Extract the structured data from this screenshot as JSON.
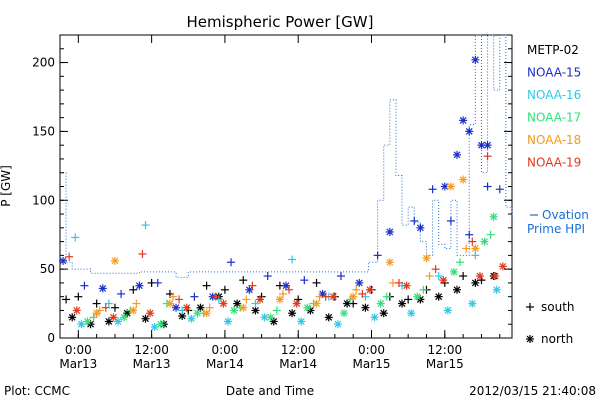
{
  "chart_data": {
    "type": "scatter",
    "title": "Hemispheric Power [GW]",
    "xlabel": "Date and Time",
    "ylabel": "P [GW]",
    "xlim": [
      "2012-03-12 21:00",
      "2012-03-15 23:00"
    ],
    "ylim": [
      0,
      220
    ],
    "yticks": [
      0,
      50,
      100,
      150,
      200
    ],
    "xticks": [
      {
        "t": "2012-03-13 00:00",
        "l1": "0:00",
        "l2": "Mar13"
      },
      {
        "t": "2012-03-13 12:00",
        "l1": "12:00",
        "l2": "Mar13"
      },
      {
        "t": "2012-03-14 00:00",
        "l1": "0:00",
        "l2": "Mar14"
      },
      {
        "t": "2012-03-14 12:00",
        "l1": "12:00",
        "l2": "Mar14"
      },
      {
        "t": "2012-03-15 00:00",
        "l1": "0:00",
        "l2": "Mar15"
      },
      {
        "t": "2012-03-15 12:00",
        "l1": "12:00",
        "l2": "Mar15"
      }
    ],
    "grid": false,
    "legend_position": "right",
    "satellites": [
      {
        "name": "METP-02",
        "color": "#000000"
      },
      {
        "name": "NOAA-15",
        "color": "#1a2fc8"
      },
      {
        "name": "NOAA-16",
        "color": "#2fc8e6"
      },
      {
        "name": "NOAA-17",
        "color": "#33e07a"
      },
      {
        "name": "NOAA-18",
        "color": "#f59a23"
      },
      {
        "name": "NOAA-19",
        "color": "#e03a1e"
      }
    ],
    "ovation": {
      "name": "Ovation Prime HPI",
      "label_line1": "Ovation",
      "label_line2": "Prime HPI",
      "color": "#1a6fd8",
      "x": [
        "2012-03-12 21:00",
        "2012-03-12 22:00",
        "2012-03-12 23:00",
        "2012-03-13 02:00",
        "2012-03-13 06:00",
        "2012-03-13 10:00",
        "2012-03-13 14:00",
        "2012-03-13 16:00",
        "2012-03-13 18:00",
        "2012-03-13 22:00",
        "2012-03-14 02:00",
        "2012-03-14 06:00",
        "2012-03-14 10:00",
        "2012-03-14 14:00",
        "2012-03-14 18:00",
        "2012-03-14 20:00",
        "2012-03-14 22:00",
        "2012-03-14 23:30",
        "2012-03-15 01:00",
        "2012-03-15 02:00",
        "2012-03-15 03:00",
        "2012-03-15 04:00",
        "2012-03-15 05:00",
        "2012-03-15 06:00",
        "2012-03-15 07:00",
        "2012-03-15 08:00",
        "2012-03-15 09:00",
        "2012-03-15 10:00",
        "2012-03-15 11:00",
        "2012-03-15 12:00",
        "2012-03-15 13:00",
        "2012-03-15 14:00",
        "2012-03-15 15:00",
        "2012-03-15 16:00",
        "2012-03-15 17:00",
        "2012-03-15 18:00",
        "2012-03-15 19:00",
        "2012-03-15 20:00",
        "2012-03-15 21:00",
        "2012-03-15 22:00",
        "2012-03-15 23:00"
      ],
      "values": [
        120,
        55,
        50,
        47,
        47,
        48,
        48,
        44,
        48,
        48,
        48,
        48,
        48,
        48,
        48,
        48,
        48,
        55,
        100,
        140,
        173,
        118,
        82,
        95,
        84,
        70,
        60,
        100,
        68,
        65,
        100,
        60,
        60,
        155,
        220,
        120,
        220,
        180,
        220,
        95,
        88
      ]
    },
    "series": [
      {
        "satellite": "METP-02",
        "hemisphere": "south",
        "x": [
          "2012-03-12 22:00",
          "2012-03-13 00:00",
          "2012-03-13 03:00",
          "2012-03-13 06:00",
          "2012-03-13 09:00",
          "2012-03-13 12:00",
          "2012-03-13 15:00",
          "2012-03-13 18:00",
          "2012-03-13 21:00",
          "2012-03-14 00:00",
          "2012-03-14 03:00",
          "2012-03-14 06:00",
          "2012-03-14 09:00",
          "2012-03-14 12:00",
          "2012-03-14 15:00",
          "2012-03-14 18:00",
          "2012-03-14 21:00",
          "2012-03-15 00:00",
          "2012-03-15 03:00",
          "2012-03-15 06:00",
          "2012-03-15 09:00",
          "2012-03-15 12:00",
          "2012-03-15 15:00",
          "2012-03-15 18:00"
        ],
        "values": [
          28,
          30,
          25,
          22,
          35,
          40,
          32,
          20,
          38,
          35,
          42,
          30,
          38,
          28,
          40,
          30,
          25,
          35,
          30,
          28,
          35,
          40,
          45,
          42
        ]
      },
      {
        "satellite": "METP-02",
        "hemisphere": "north",
        "x": [
          "2012-03-12 23:00",
          "2012-03-13 02:00",
          "2012-03-13 05:00",
          "2012-03-13 08:00",
          "2012-03-13 11:00",
          "2012-03-13 14:00",
          "2012-03-13 17:00",
          "2012-03-13 20:00",
          "2012-03-13 23:00",
          "2012-03-14 02:00",
          "2012-03-14 05:00",
          "2012-03-14 08:00",
          "2012-03-14 11:00",
          "2012-03-14 14:00",
          "2012-03-14 17:00",
          "2012-03-14 20:00",
          "2012-03-14 23:00",
          "2012-03-15 02:00",
          "2012-03-15 05:00",
          "2012-03-15 08:00",
          "2012-03-15 11:00",
          "2012-03-15 14:00",
          "2012-03-15 17:00",
          "2012-03-15 20:00"
        ],
        "values": [
          15,
          10,
          12,
          18,
          14,
          10,
          16,
          22,
          30,
          25,
          20,
          12,
          18,
          20,
          15,
          25,
          22,
          18,
          25,
          28,
          30,
          35,
          40,
          45
        ]
      },
      {
        "satellite": "NOAA-15",
        "hemisphere": "south",
        "x": [
          "2012-03-13 01:00",
          "2012-03-13 07:00",
          "2012-03-13 13:00",
          "2012-03-13 19:00",
          "2012-03-14 01:00",
          "2012-03-14 07:00",
          "2012-03-14 13:00",
          "2012-03-14 19:00",
          "2012-03-15 01:00",
          "2012-03-15 07:00",
          "2012-03-15 10:00",
          "2012-03-15 13:00",
          "2012-03-15 16:00",
          "2012-03-15 19:00",
          "2012-03-15 21:00"
        ],
        "values": [
          38,
          32,
          40,
          30,
          55,
          45,
          42,
          45,
          60,
          85,
          108,
          85,
          75,
          110,
          108
        ]
      },
      {
        "satellite": "NOAA-15",
        "hemisphere": "north",
        "x": [
          "2012-03-12 21:30",
          "2012-03-13 04:00",
          "2012-03-13 10:00",
          "2012-03-13 16:00",
          "2012-03-13 22:00",
          "2012-03-14 04:00",
          "2012-03-14 10:00",
          "2012-03-14 16:00",
          "2012-03-14 22:00",
          "2012-03-15 03:00",
          "2012-03-15 08:00",
          "2012-03-15 12:00",
          "2012-03-15 14:00",
          "2012-03-15 15:00",
          "2012-03-15 16:00",
          "2012-03-15 17:00",
          "2012-03-15 18:00",
          "2012-03-15 19:00"
        ],
        "values": [
          56,
          36,
          38,
          22,
          30,
          35,
          38,
          32,
          40,
          77,
          80,
          110,
          133,
          158,
          150,
          202,
          140,
          140
        ]
      },
      {
        "satellite": "NOAA-16",
        "hemisphere": "south",
        "x": [
          "2012-03-12 23:30",
          "2012-03-13 05:00",
          "2012-03-13 11:00",
          "2012-03-13 17:00",
          "2012-03-13 23:00",
          "2012-03-14 05:00",
          "2012-03-14 11:00",
          "2012-03-14 17:00",
          "2012-03-14 23:00",
          "2012-03-15 05:00",
          "2012-03-15 11:00",
          "2012-03-15 17:00"
        ],
        "values": [
          73,
          25,
          82,
          20,
          28,
          25,
          57,
          30,
          30,
          38,
          45,
          60
        ]
      },
      {
        "satellite": "NOAA-16",
        "hemisphere": "north",
        "x": [
          "2012-03-13 00:30",
          "2012-03-13 06:30",
          "2012-03-13 12:30",
          "2012-03-13 18:30",
          "2012-03-14 00:30",
          "2012-03-14 06:30",
          "2012-03-14 12:30",
          "2012-03-14 18:30",
          "2012-03-15 00:30",
          "2012-03-15 06:30",
          "2012-03-15 12:30",
          "2012-03-15 16:30",
          "2012-03-15 20:30"
        ],
        "values": [
          10,
          12,
          8,
          14,
          12,
          15,
          12,
          10,
          15,
          18,
          20,
          25,
          35
        ]
      },
      {
        "satellite": "NOAA-17",
        "hemisphere": "south",
        "x": [
          "2012-03-13 02:30",
          "2012-03-13 08:30",
          "2012-03-13 14:30",
          "2012-03-13 20:30",
          "2012-03-14 02:30",
          "2012-03-14 08:30",
          "2012-03-14 14:30",
          "2012-03-14 20:30",
          "2012-03-15 02:30",
          "2012-03-15 08:30",
          "2012-03-15 14:30",
          "2012-03-15 19:30"
        ],
        "values": [
          15,
          20,
          25,
          18,
          22,
          20,
          25,
          28,
          30,
          35,
          55,
          75
        ]
      },
      {
        "satellite": "NOAA-17",
        "hemisphere": "north",
        "x": [
          "2012-03-13 01:30",
          "2012-03-13 07:30",
          "2012-03-13 13:30",
          "2012-03-13 19:30",
          "2012-03-14 01:30",
          "2012-03-14 07:30",
          "2012-03-14 13:30",
          "2012-03-14 19:30",
          "2012-03-15 01:30",
          "2012-03-15 07:30",
          "2012-03-15 13:30",
          "2012-03-15 18:30",
          "2012-03-15 20:00"
        ],
        "values": [
          12,
          15,
          10,
          18,
          20,
          15,
          22,
          18,
          25,
          30,
          48,
          70,
          88
        ]
      },
      {
        "satellite": "NOAA-18",
        "hemisphere": "south",
        "x": [
          "2012-03-13 03:30",
          "2012-03-13 09:30",
          "2012-03-13 15:30",
          "2012-03-13 21:30",
          "2012-03-14 03:30",
          "2012-03-14 09:30",
          "2012-03-14 15:30",
          "2012-03-14 21:30",
          "2012-03-15 03:30",
          "2012-03-15 09:30",
          "2012-03-15 15:30"
        ],
        "values": [
          20,
          25,
          30,
          22,
          28,
          32,
          30,
          35,
          40,
          45,
          65
        ]
      },
      {
        "satellite": "NOAA-18",
        "hemisphere": "north",
        "x": [
          "2012-03-13 03:00",
          "2012-03-13 06:00",
          "2012-03-13 09:00",
          "2012-03-13 15:00",
          "2012-03-13 21:00",
          "2012-03-14 03:00",
          "2012-03-14 09:00",
          "2012-03-14 15:00",
          "2012-03-14 21:00",
          "2012-03-15 03:00",
          "2012-03-15 09:00",
          "2012-03-15 13:00",
          "2012-03-15 15:00",
          "2012-03-15 17:00"
        ],
        "values": [
          18,
          56,
          20,
          25,
          18,
          22,
          28,
          25,
          30,
          55,
          58,
          110,
          115,
          65
        ]
      },
      {
        "satellite": "NOAA-19",
        "hemisphere": "south",
        "x": [
          "2012-03-12 22:30",
          "2012-03-13 04:30",
          "2012-03-13 10:30",
          "2012-03-13 16:30",
          "2012-03-13 22:30",
          "2012-03-14 04:30",
          "2012-03-14 10:30",
          "2012-03-14 16:30",
          "2012-03-14 22:30",
          "2012-03-15 04:30",
          "2012-03-15 10:30",
          "2012-03-15 16:30",
          "2012-03-15 19:00"
        ],
        "values": [
          59,
          22,
          61,
          28,
          30,
          38,
          35,
          30,
          32,
          40,
          50,
          70,
          132
        ]
      },
      {
        "satellite": "NOAA-19",
        "hemisphere": "north",
        "x": [
          "2012-03-12 23:45",
          "2012-03-13 05:45",
          "2012-03-13 11:45",
          "2012-03-13 17:45",
          "2012-03-13 23:45",
          "2012-03-14 05:45",
          "2012-03-14 11:45",
          "2012-03-14 17:45",
          "2012-03-14 23:45",
          "2012-03-15 05:45",
          "2012-03-15 11:45",
          "2012-03-15 17:45",
          "2012-03-15 20:15",
          "2012-03-15 21:30"
        ],
        "values": [
          20,
          15,
          18,
          22,
          25,
          28,
          25,
          30,
          35,
          38,
          42,
          45,
          45,
          52
        ]
      }
    ],
    "hemisphere_legend": [
      {
        "symbol": "+",
        "label": "south"
      },
      {
        "symbol": "*",
        "label": "north"
      }
    ]
  },
  "footer": {
    "plot_credit": "Plot: CCMC",
    "timestamp": "2012/03/15 21:40:08"
  }
}
